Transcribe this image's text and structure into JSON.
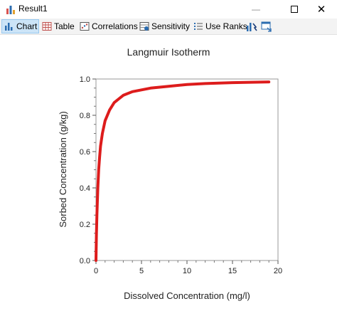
{
  "window": {
    "title": "Result1"
  },
  "toolbar": {
    "chart_label": "Chart",
    "table_label": "Table",
    "correlations_label": "Correlations",
    "sensitivity_label": "Sensitivity",
    "use_ranks_label": "Use Ranks"
  },
  "colors": {
    "series": "#dd1c1c",
    "toolbar_bg": "#f3f3f3",
    "active_tab": "#cce4f7"
  },
  "chart_data": {
    "type": "line",
    "title": "Langmuir Isotherm",
    "xlabel": "Dissolved Concentration (mg/l)",
    "ylabel": "Sorbed Concentration (g/kg)",
    "xlim": [
      0,
      20
    ],
    "ylim": [
      0,
      1
    ],
    "x_ticks": [
      "0",
      "5",
      "10",
      "15",
      "20"
    ],
    "y_ticks": [
      "0.0",
      "0.2",
      "0.4",
      "0.6",
      "0.8",
      "1.0"
    ],
    "grid": false,
    "series": [
      {
        "x": [
          0,
          0.05,
          0.1,
          0.2,
          0.3,
          0.4,
          0.5,
          0.7,
          1.0,
          1.5,
          2.0,
          2.5,
          3.0,
          4.0,
          5.0,
          6.0,
          8.0,
          10.0,
          12.0,
          15.0,
          17.0,
          19.0
        ],
        "y": [
          0,
          0.14,
          0.25,
          0.4,
          0.5,
          0.57,
          0.63,
          0.7,
          0.77,
          0.83,
          0.87,
          0.89,
          0.91,
          0.93,
          0.94,
          0.95,
          0.96,
          0.97,
          0.975,
          0.98,
          0.982,
          0.984
        ]
      }
    ]
  }
}
